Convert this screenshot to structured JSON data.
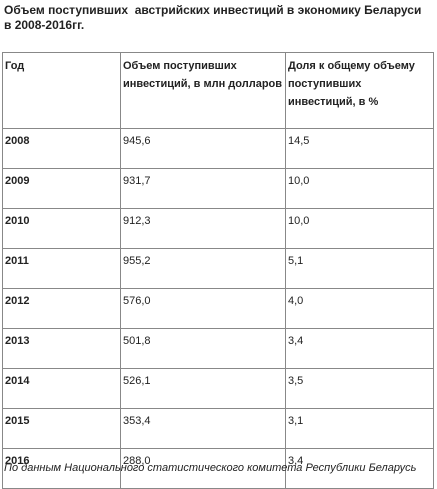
{
  "title": "Объем поступивших  австрийских инвестиций в экономику Беларуси в 2008-2016гг.",
  "table": {
    "headers": [
      "Год",
      "Объем поступивших инвестиций, в млн долларов",
      "Доля к общему объему поступивших инвестиций, в %"
    ],
    "rows": [
      [
        "2008",
        "945,6",
        "14,5"
      ],
      [
        "2009",
        "931,7",
        "10,0"
      ],
      [
        "2010",
        "912,3",
        "10,0"
      ],
      [
        "2011",
        "955,2",
        "5,1"
      ],
      [
        "2012",
        "576,0",
        "4,0"
      ],
      [
        "2013",
        "501,8",
        "3,4"
      ],
      [
        "2014",
        "526,1",
        "3,5"
      ],
      [
        "2015",
        "353,4",
        "3,1"
      ],
      [
        "2016",
        "288,0",
        "3,4"
      ]
    ]
  },
  "source": "По данным Национального статистического комитета Республики Беларусь"
}
